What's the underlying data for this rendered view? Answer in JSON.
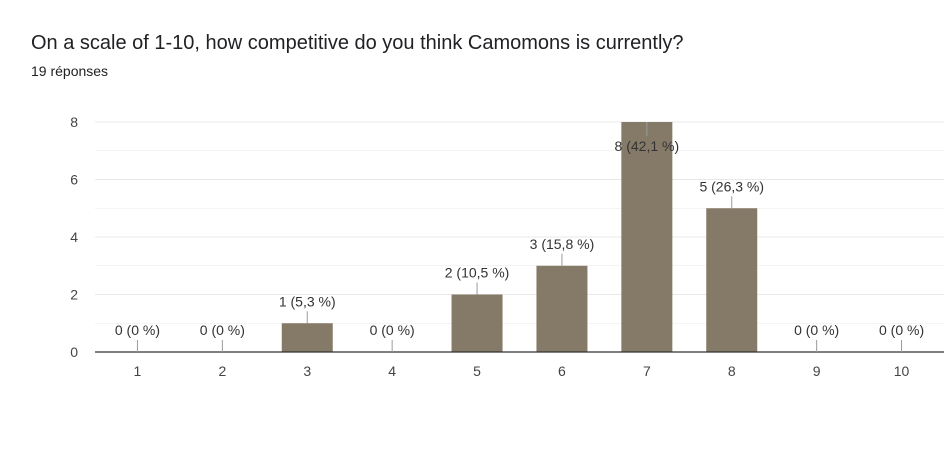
{
  "header": {
    "question": "On a scale of 1-10, how competitive do you think Camomons is currently?",
    "response_count": "19 réponses"
  },
  "colors": {
    "bar": "#857a67",
    "gridline": "#e8e8e8",
    "axis": "#333333",
    "leader": "#9a9a9a"
  },
  "chart_data": {
    "type": "bar",
    "categories": [
      "1",
      "2",
      "3",
      "4",
      "5",
      "6",
      "7",
      "8",
      "9",
      "10"
    ],
    "values": [
      0,
      0,
      1,
      0,
      2,
      3,
      8,
      5,
      0,
      0
    ],
    "data_labels": [
      "0 (0 %)",
      "0 (0 %)",
      "1 (5,3 %)",
      "0 (0 %)",
      "2 (10,5 %)",
      "3 (15,8 %)",
      "8 (42,1 %)",
      "5 (26,3 %)",
      "0 (0 %)",
      "0 (0 %)"
    ],
    "y_ticks": [
      "0",
      "2",
      "4",
      "6",
      "8"
    ],
    "ylim": [
      0,
      8
    ],
    "grid": true,
    "legend": "none"
  }
}
